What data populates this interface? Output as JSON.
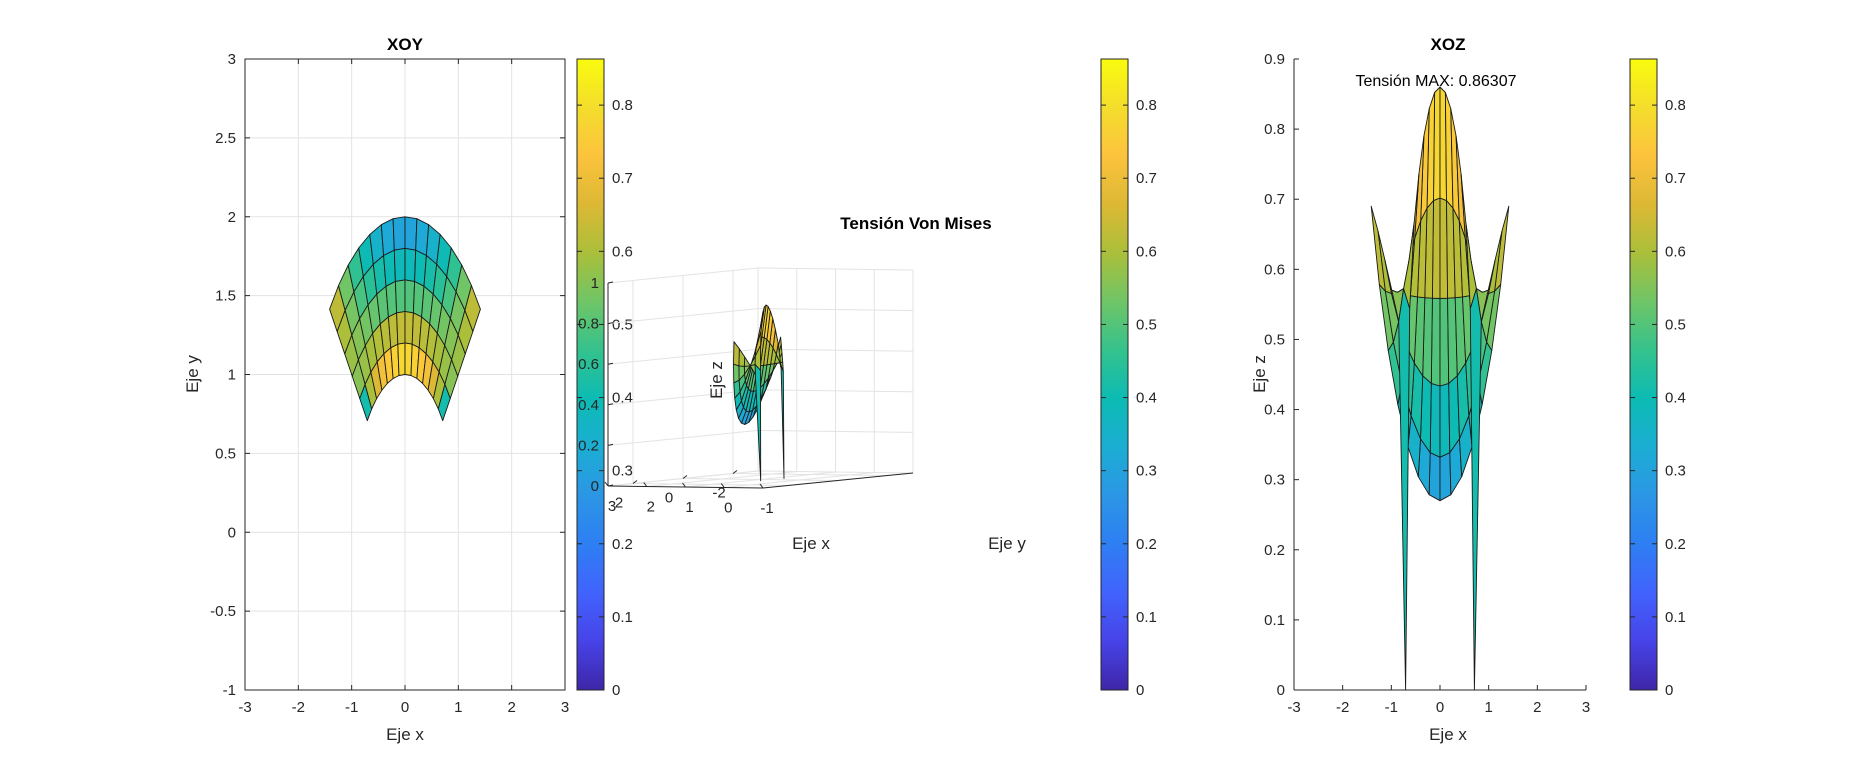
{
  "colormap": [
    "#3e26a8",
    "#4743e8",
    "#4163fd",
    "#2e7ff3",
    "#2b96e5",
    "#1baed3",
    "#0cbbb3",
    "#34c28d",
    "#6fc567",
    "#aabf3a",
    "#dcb834",
    "#fcc33d",
    "#f4dd2c",
    "#f9fb0e"
  ],
  "chart_data": [
    {
      "type": "surface",
      "view": "top (XY)",
      "title": "XOY",
      "xlabel": "Eje x",
      "ylabel": "Eje y",
      "xlim": [
        -3,
        3
      ],
      "ylim": [
        -1,
        3
      ],
      "xticks": [
        "-3",
        "-2",
        "-1",
        "0",
        "1",
        "2",
        "3"
      ],
      "yticks": [
        "-1",
        "-0.5",
        "0",
        "0.5",
        "1",
        "1.5",
        "2",
        "2.5",
        "3"
      ],
      "grid": true,
      "colorbar": {
        "range": [
          0,
          0.86307
        ],
        "ticks": [
          "0",
          "0.1",
          "0.2",
          "0.3",
          "0.4",
          "0.5",
          "0.6",
          "0.7",
          "0.8"
        ]
      }
    },
    {
      "type": "surface",
      "view": "3d",
      "title": "Tensión Von Mises",
      "xlabel": "Eje x",
      "ylabel": "Eje y",
      "zlabel": "Eje z",
      "zlim": [
        0,
        1
      ],
      "xticks": [
        "2",
        "0",
        "-2"
      ],
      "yticks": [
        "3",
        "2",
        "1",
        "0",
        "-1"
      ],
      "zticks": [
        "0",
        "0.2",
        "0.4",
        "0.6",
        "0.8",
        "1"
      ],
      "grid": true,
      "colorbar": {
        "range": [
          0,
          0.86307
        ],
        "ticks": [
          "0",
          "0.1",
          "0.2",
          "0.3",
          "0.4",
          "0.5",
          "0.6",
          "0.7",
          "0.8"
        ]
      }
    },
    {
      "type": "surface",
      "view": "front (XZ)",
      "title": "XOZ",
      "xlabel": "Eje x",
      "ylabel": "Eje z",
      "xlim": [
        -3,
        3
      ],
      "ylim": [
        0,
        0.9
      ],
      "xticks": [
        "-3",
        "-2",
        "-1",
        "0",
        "1",
        "2",
        "3"
      ],
      "yticks": [
        "0",
        "0.1",
        "0.2",
        "0.3",
        "0.4",
        "0.5",
        "0.6",
        "0.7",
        "0.8",
        "0.9"
      ],
      "annotation": "Tensión MAX: 0.86307",
      "max_value": 0.86307,
      "colorbar": {
        "range": [
          0,
          0.86307
        ],
        "ticks": [
          "0",
          "0.1",
          "0.2",
          "0.3",
          "0.4",
          "0.5",
          "0.6",
          "0.7",
          "0.8"
        ]
      }
    }
  ]
}
